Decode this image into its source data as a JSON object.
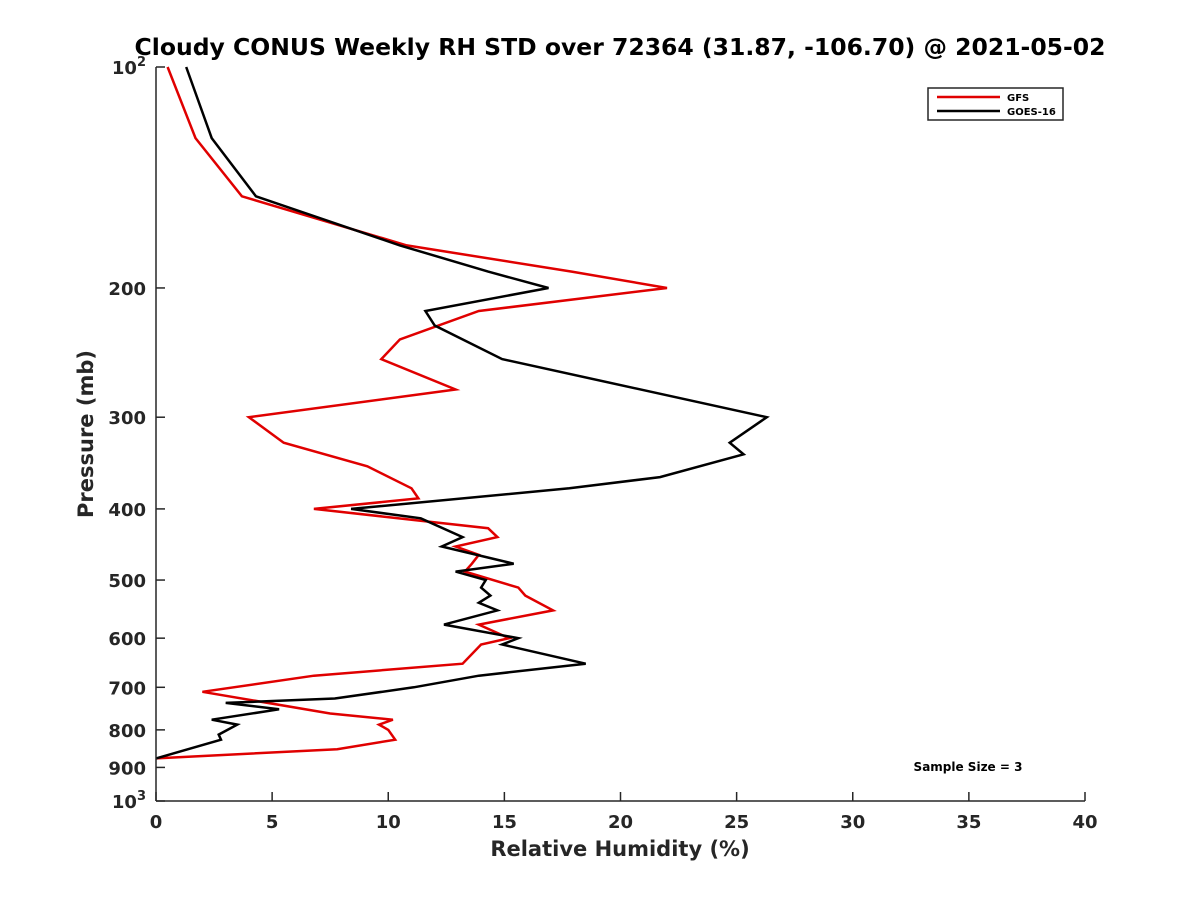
{
  "chart_data": {
    "type": "line",
    "title": "Cloudy CONUS Weekly RH STD over 72364 (31.87, -106.70) @ 2021-05-02",
    "xlabel": "Relative Humidity (%)",
    "ylabel": "Pressure (mb)",
    "xlim": [
      0,
      40
    ],
    "ylim": [
      100,
      1000
    ],
    "y_scale": "log",
    "y_reversed": true,
    "grid": false,
    "legend_position": "top-right",
    "x_ticks": [
      0,
      5,
      10,
      15,
      20,
      25,
      30,
      35,
      40
    ],
    "y_ticks": [
      {
        "value": 100,
        "base": "10",
        "exp": "2"
      },
      {
        "value": 200,
        "label": "200"
      },
      {
        "value": 300,
        "label": "300"
      },
      {
        "value": 400,
        "label": "400"
      },
      {
        "value": 500,
        "label": "500"
      },
      {
        "value": 600,
        "label": "600"
      },
      {
        "value": 700,
        "label": "700"
      },
      {
        "value": 800,
        "label": "800"
      },
      {
        "value": 900,
        "label": "900"
      },
      {
        "value": 1000,
        "base": "10",
        "exp": "3"
      }
    ],
    "series": [
      {
        "name": "GFS",
        "color": "#e00000",
        "points": [
          [
            0.5,
            100
          ],
          [
            1.7,
            125
          ],
          [
            3.7,
            150
          ],
          [
            10.8,
            175
          ],
          [
            17.9,
            190
          ],
          [
            22.0,
            200
          ],
          [
            13.9,
            215
          ],
          [
            10.5,
            235
          ],
          [
            9.7,
            250
          ],
          [
            12.9,
            275
          ],
          [
            4.0,
            300
          ],
          [
            5.5,
            325
          ],
          [
            9.1,
            350
          ],
          [
            11.0,
            375
          ],
          [
            11.3,
            387
          ],
          [
            6.8,
            400
          ],
          [
            14.3,
            425
          ],
          [
            14.7,
            437
          ],
          [
            12.9,
            450
          ],
          [
            13.9,
            462
          ],
          [
            13.6,
            475
          ],
          [
            13.3,
            487
          ],
          [
            15.6,
            512
          ],
          [
            15.9,
            525
          ],
          [
            17.1,
            550
          ],
          [
            13.9,
            575
          ],
          [
            15.2,
            600
          ],
          [
            14.0,
            612
          ],
          [
            13.2,
            650
          ],
          [
            6.8,
            675
          ],
          [
            2.0,
            710
          ],
          [
            7.5,
            760
          ],
          [
            10.2,
            775
          ],
          [
            9.6,
            787
          ],
          [
            10.0,
            800
          ],
          [
            10.3,
            825
          ],
          [
            7.8,
            850
          ],
          [
            0.0,
            875
          ]
        ]
      },
      {
        "name": "GOES-16",
        "color": "#000000",
        "points": [
          [
            1.3,
            100
          ],
          [
            2.4,
            125
          ],
          [
            4.3,
            150
          ],
          [
            10.5,
            175
          ],
          [
            14.3,
            190
          ],
          [
            16.9,
            200
          ],
          [
            11.6,
            215
          ],
          [
            12.0,
            225
          ],
          [
            14.9,
            250
          ],
          [
            26.3,
            300
          ],
          [
            24.7,
            325
          ],
          [
            25.3,
            337
          ],
          [
            21.7,
            362
          ],
          [
            17.8,
            375
          ],
          [
            8.4,
            400
          ],
          [
            11.4,
            412
          ],
          [
            13.2,
            437
          ],
          [
            12.3,
            450
          ],
          [
            15.4,
            475
          ],
          [
            12.9,
            487
          ],
          [
            14.2,
            500
          ],
          [
            14.0,
            512
          ],
          [
            14.4,
            525
          ],
          [
            13.9,
            537
          ],
          [
            14.7,
            550
          ],
          [
            12.4,
            575
          ],
          [
            15.6,
            600
          ],
          [
            14.9,
            612
          ],
          [
            18.5,
            650
          ],
          [
            13.9,
            675
          ],
          [
            11.1,
            700
          ],
          [
            7.7,
            725
          ],
          [
            3.0,
            735
          ],
          [
            5.3,
            750
          ],
          [
            2.4,
            775
          ],
          [
            3.5,
            787
          ],
          [
            2.7,
            812
          ],
          [
            2.8,
            825
          ],
          [
            0.0,
            875
          ]
        ]
      }
    ],
    "annotation": "Sample Size = 3"
  }
}
